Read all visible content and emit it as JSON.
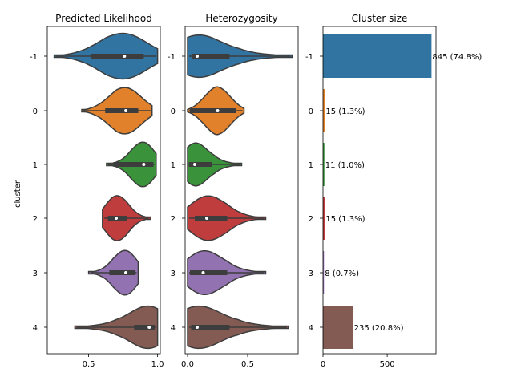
{
  "chart_data": [
    {
      "type": "violin",
      "title": "Predicted Likelihood",
      "ylabel": "cluster",
      "categories": [
        "-1",
        "0",
        "1",
        "2",
        "3",
        "4"
      ],
      "xticks": [
        "0.5",
        "1.0"
      ],
      "xlim": [
        0.2,
        1.02
      ],
      "series": [
        {
          "cluster": "-1",
          "color": "#3274a1",
          "min": 0.25,
          "q1": 0.52,
          "median": 0.76,
          "q3": 0.9,
          "max": 1.0
        },
        {
          "cluster": "0",
          "color": "#e1812c",
          "min": 0.45,
          "q1": 0.62,
          "median": 0.77,
          "q3": 0.86,
          "max": 0.96
        },
        {
          "cluster": "1",
          "color": "#3a923a",
          "min": 0.63,
          "q1": 0.68,
          "median": 0.9,
          "q3": 0.97,
          "max": 0.99
        },
        {
          "cluster": "2",
          "color": "#c03d3e",
          "min": 0.6,
          "q1": 0.64,
          "median": 0.7,
          "q3": 0.78,
          "max": 0.95
        },
        {
          "cluster": "3",
          "color": "#9372b2",
          "min": 0.5,
          "q1": 0.65,
          "median": 0.77,
          "q3": 0.84,
          "max": 0.86
        },
        {
          "cluster": "4",
          "color": "#845b53",
          "min": 0.4,
          "q1": 0.83,
          "median": 0.94,
          "q3": 0.98,
          "max": 1.0
        }
      ]
    },
    {
      "type": "violin",
      "title": "Heterozygosity",
      "categories": [
        "-1",
        "0",
        "1",
        "2",
        "3",
        "4"
      ],
      "xticks": [
        "0.0",
        "0.5"
      ],
      "xlim": [
        -0.02,
        0.92
      ],
      "series": [
        {
          "cluster": "-1",
          "color": "#3274a1",
          "min": 0.0,
          "q1": 0.04,
          "median": 0.08,
          "q3": 0.35,
          "max": 0.87
        },
        {
          "cluster": "0",
          "color": "#e1812c",
          "min": 0.0,
          "q1": 0.02,
          "median": 0.25,
          "q3": 0.4,
          "max": 0.47
        },
        {
          "cluster": "1",
          "color": "#3a923a",
          "min": 0.0,
          "q1": 0.01,
          "median": 0.06,
          "q3": 0.2,
          "max": 0.45
        },
        {
          "cluster": "2",
          "color": "#c03d3e",
          "min": 0.0,
          "q1": 0.06,
          "median": 0.16,
          "q3": 0.33,
          "max": 0.65
        },
        {
          "cluster": "3",
          "color": "#9372b2",
          "min": 0.0,
          "q1": 0.02,
          "median": 0.13,
          "q3": 0.33,
          "max": 0.65
        },
        {
          "cluster": "4",
          "color": "#845b53",
          "min": 0.0,
          "q1": 0.03,
          "median": 0.08,
          "q3": 0.35,
          "max": 0.84
        }
      ]
    },
    {
      "type": "bar",
      "orientation": "horizontal",
      "title": "Cluster size",
      "categories": [
        "-1",
        "0",
        "1",
        "2",
        "3",
        "4"
      ],
      "values": [
        845,
        15,
        11,
        15,
        8,
        235
      ],
      "labels": [
        "845 (74.8%)",
        "15 (1.3%)",
        "11 (1.0%)",
        "15 (1.3%)",
        "8 (0.7%)",
        "235 (20.8%)"
      ],
      "colors": [
        "#3274a1",
        "#e1812c",
        "#3a923a",
        "#c03d3e",
        "#9372b2",
        "#845b53"
      ],
      "xticks": [
        "0",
        "500"
      ],
      "xlim": [
        0,
        880
      ]
    }
  ]
}
